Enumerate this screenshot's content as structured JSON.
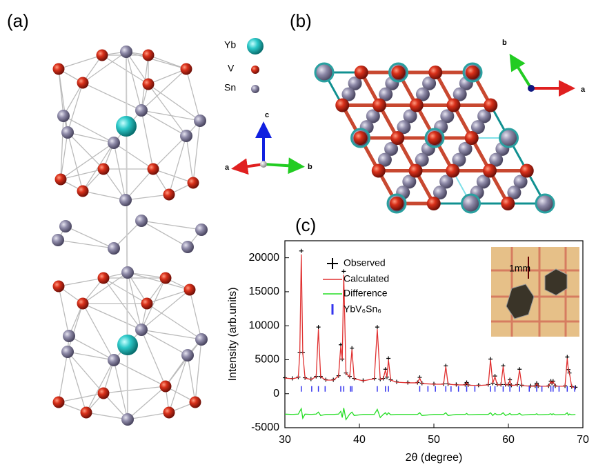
{
  "panels": {
    "a": {
      "label": "(a)",
      "legend": [
        "Yb",
        "V",
        "Sn"
      ],
      "axes": [
        "c",
        "a",
        "b"
      ]
    },
    "b": {
      "label": "(b)",
      "axes": [
        "b",
        "a"
      ]
    },
    "c": {
      "label": "(c)",
      "inset_label": "1mm"
    }
  },
  "chart_data": {
    "type": "line",
    "x_label": "2θ (degree)",
    "y_label": "Intensity (arb.units)",
    "xlim": [
      30,
      70
    ],
    "xticks": [
      30,
      40,
      50,
      60,
      70
    ],
    "ylim": [
      -5000,
      22500
    ],
    "yticks": [
      -5000,
      0,
      5000,
      10000,
      15000,
      20000
    ],
    "x": [
      30,
      31,
      31.8,
      32,
      32.2,
      32.4,
      32.7,
      33.5,
      34.2,
      34.5,
      34.8,
      35.5,
      36.5,
      37.2,
      37.5,
      37.7,
      37.9,
      38.2,
      38.7,
      39.0,
      39.3,
      40.5,
      42.0,
      42.4,
      42.8,
      43.2,
      43.5,
      43.7,
      43.9,
      44.2,
      45,
      46.5,
      47.8,
      48.1,
      48.4,
      50,
      51.3,
      51.6,
      51.9,
      53,
      54.2,
      54.4,
      54.6,
      56,
      57.3,
      57.6,
      57.9,
      58.2,
      58.5,
      59.0,
      59.3,
      59.6,
      60.0,
      60.2,
      60.4,
      61.2,
      61.5,
      61.8,
      63.0,
      63.6,
      63.8,
      64.0,
      65.4,
      65.7,
      65.85,
      66.0,
      66.3,
      67.6,
      67.9,
      68.05,
      68.2,
      68.5,
      69
    ],
    "series": [
      {
        "name": "Observed",
        "color": "#000000",
        "marker": "+",
        "values": [
          2350,
          2250,
          2450,
          6100,
          21000,
          6100,
          2350,
          2150,
          2550,
          9800,
          2550,
          2050,
          2050,
          2650,
          7200,
          5100,
          18000,
          3050,
          2550,
          6700,
          2250,
          1950,
          2250,
          9800,
          2150,
          2250,
          3600,
          2450,
          5200,
          2050,
          1750,
          1650,
          1650,
          2400,
          1550,
          1450,
          1450,
          4100,
          1450,
          1350,
          1350,
          1650,
          1300,
          1250,
          1350,
          5100,
          1550,
          2600,
          1350,
          1350,
          4100,
          1350,
          1350,
          2050,
          1250,
          1350,
          3600,
          1250,
          1150,
          1150,
          1550,
          1150,
          1150,
          1850,
          1550,
          1850,
          1150,
          1150,
          5400,
          3550,
          3050,
          1050,
          950
        ]
      },
      {
        "name": "Calculated",
        "color": "#e03030",
        "values": [
          2300,
          2200,
          2400,
          6000,
          20500,
          6000,
          2300,
          2100,
          2500,
          9500,
          2500,
          2000,
          2000,
          2600,
          7000,
          5000,
          17500,
          3000,
          2500,
          6500,
          2200,
          1900,
          2200,
          9500,
          2100,
          2200,
          3500,
          2400,
          5000,
          2000,
          1700,
          1600,
          1600,
          2300,
          1500,
          1400,
          1400,
          4000,
          1400,
          1300,
          1300,
          1600,
          1250,
          1200,
          1300,
          5000,
          1500,
          2500,
          1300,
          1300,
          4000,
          1300,
          1300,
          2000,
          1200,
          1300,
          3500,
          1200,
          1100,
          1100,
          1500,
          1100,
          1100,
          1800,
          1500,
          1800,
          1100,
          1100,
          5200,
          3500,
          3000,
          1000,
          900
        ]
      },
      {
        "name": "Difference",
        "color": "#22dd22",
        "values": [
          -3000,
          -3050,
          -3000,
          -2600,
          -2200,
          -3600,
          -3000,
          -3050,
          -3000,
          -2700,
          -3200,
          -3050,
          -3050,
          -3000,
          -2600,
          -3500,
          -2100,
          -3800,
          -3000,
          -2700,
          -3200,
          -3050,
          -3050,
          -2300,
          -3500,
          -3050,
          -2800,
          -3100,
          -2800,
          -3100,
          -3050,
          -3050,
          -3050,
          -2800,
          -3200,
          -3050,
          -3050,
          -2800,
          -3200,
          -3050,
          -3050,
          -2900,
          -3100,
          -3050,
          -3050,
          -2800,
          -3200,
          -2900,
          -3100,
          -3050,
          -2800,
          -3200,
          -3050,
          -2900,
          -3100,
          -3050,
          -2900,
          -3150,
          -3050,
          -3050,
          -2950,
          -3100,
          -3050,
          -2950,
          -3100,
          -2950,
          -3100,
          -3050,
          -2800,
          -3150,
          -3000,
          -3100,
          -3050
        ]
      }
    ],
    "reflections": {
      "name": "YbV₆Sn₆",
      "color": "#3333ee",
      "x": [
        32.2,
        33.6,
        34.5,
        35.4,
        37.5,
        37.9,
        38.8,
        39.0,
        42.4,
        43.5,
        43.9,
        48.1,
        49.2,
        50.2,
        51.6,
        52.3,
        53.3,
        54.4,
        55.5,
        57.6,
        58.2,
        59.3,
        60.2,
        61.5,
        62.8,
        63.8,
        64.5,
        65.7,
        66.0,
        66.8,
        67.9,
        68.9
      ]
    }
  }
}
